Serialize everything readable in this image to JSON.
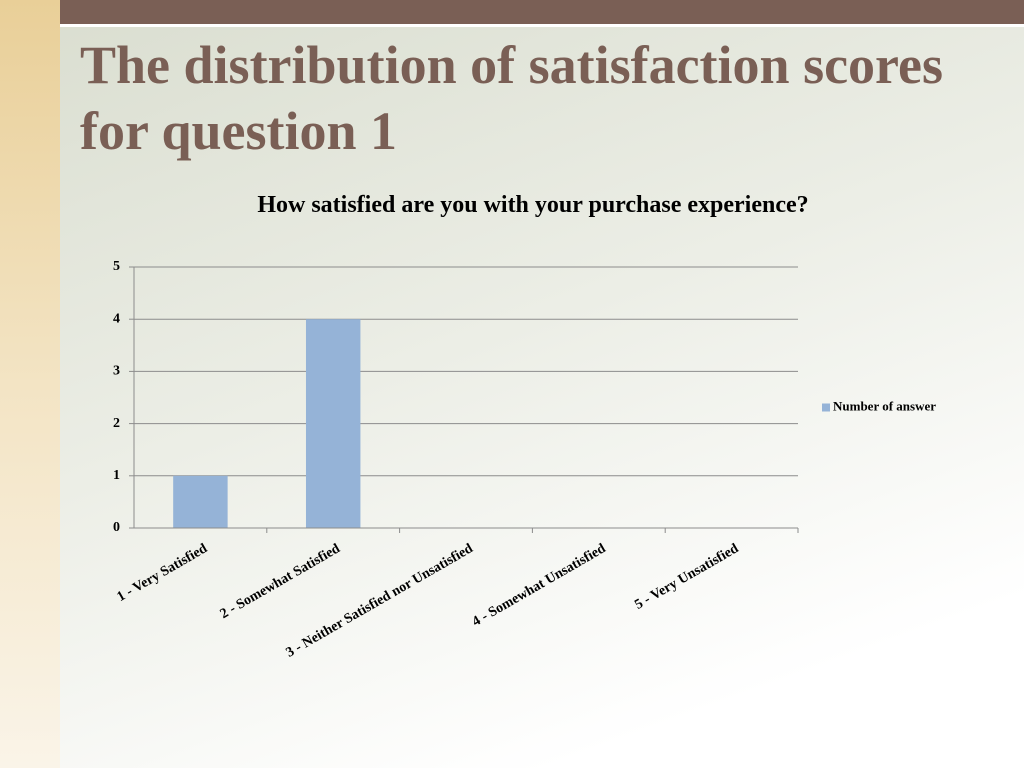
{
  "slide_title": "The distribution of satisfaction scores for question 1",
  "chart_data": {
    "type": "bar",
    "title": "How satisfied are you with your purchase experience?",
    "categories": [
      "1 - Very Satisfied",
      "2 - Somewhat Satisfied",
      "3 - Neither Satisfied nor Unsatisfied",
      "4 - Somewhat Unsatisfied",
      "5 - Very Unsatisfied"
    ],
    "series": [
      {
        "name": "Number of answer",
        "color": "#95b3d7",
        "values": [
          1,
          4,
          0,
          0,
          0
        ]
      }
    ],
    "ylim": [
      0,
      5
    ],
    "yticks": [
      0,
      1,
      2,
      3,
      4,
      5
    ],
    "grid": true,
    "legend": "right"
  }
}
